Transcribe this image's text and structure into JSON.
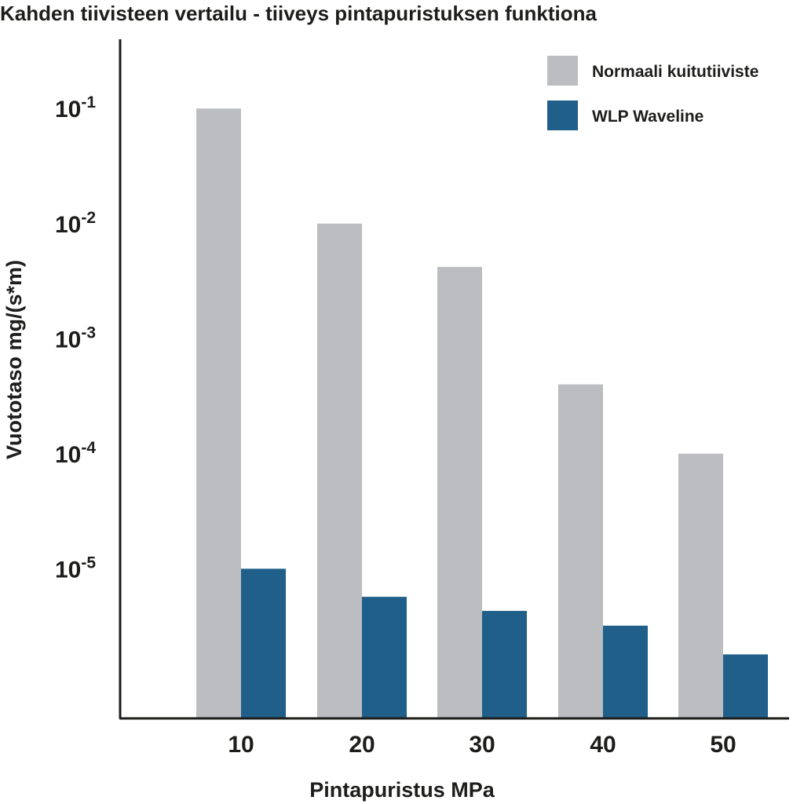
{
  "colors": {
    "axis": "#1d1d1b",
    "text": "#1d1d1b",
    "background": "#ffffff"
  },
  "chart_data": {
    "type": "bar",
    "title": "Kahden tiivisteen vertailu - tiiveys pintapuristuksen funktiona",
    "xlabel": "Pintapuristus MPa",
    "ylabel": "Vuototaso mg/(s*m)",
    "y_scale": "log",
    "ylim": [
      5e-07,
      0.4
    ],
    "y_ticks": [
      {
        "value": 0.1,
        "base": "10",
        "exp": "-1"
      },
      {
        "value": 0.01,
        "base": "10",
        "exp": "-2"
      },
      {
        "value": 0.001,
        "base": "10",
        "exp": "-3"
      },
      {
        "value": 0.0001,
        "base": "10",
        "exp": "-4"
      },
      {
        "value": 1e-05,
        "base": "10",
        "exp": "-5"
      }
    ],
    "categories": [
      "10",
      "20",
      "30",
      "40",
      "50"
    ],
    "series": [
      {
        "name": "Normaali kuitutiiviste",
        "color": "#bcbdc0",
        "values": [
          0.1,
          0.01,
          0.0042,
          0.0004,
          0.0001
        ]
      },
      {
        "name": "WLP Waveline",
        "color": "#1f5f89",
        "values": [
          1e-05,
          5.7e-06,
          4.3e-06,
          3.2e-06,
          1.8e-06
        ]
      }
    ],
    "legend": "top-right",
    "grid": false
  }
}
